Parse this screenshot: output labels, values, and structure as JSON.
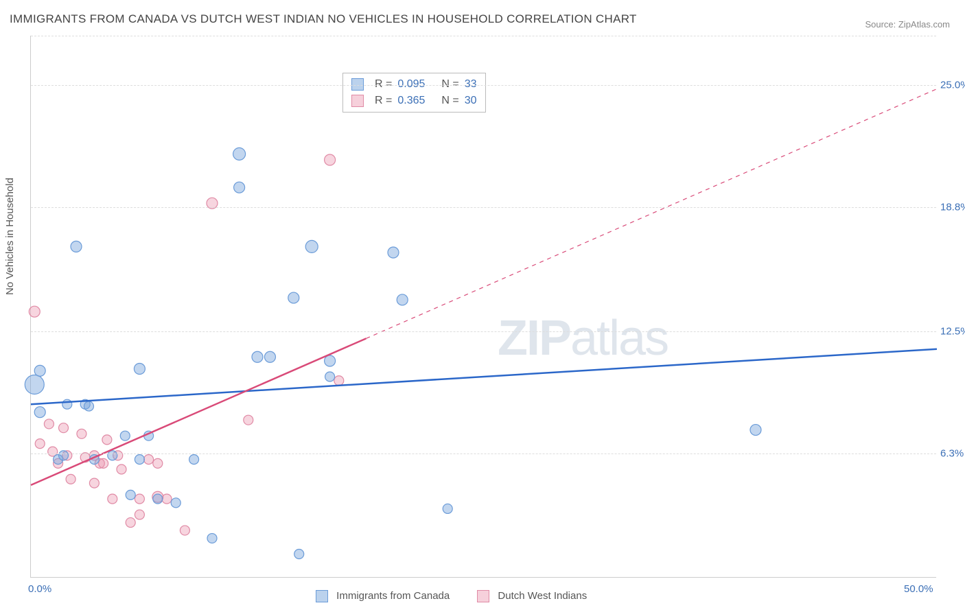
{
  "title": "IMMIGRANTS FROM CANADA VS DUTCH WEST INDIAN NO VEHICLES IN HOUSEHOLD CORRELATION CHART",
  "source": "Source: ZipAtlas.com",
  "y_axis_title": "No Vehicles in Household",
  "watermark": {
    "bold": "ZIP",
    "light": "atlas"
  },
  "chart": {
    "type": "scatter-with-regression",
    "x_min": 0.0,
    "x_max": 50.0,
    "y_min": 0.0,
    "y_max": 27.5,
    "background_color": "#ffffff",
    "grid_color": "#dddddd",
    "axis_color": "#cccccc",
    "tick_color": "#3b6fb6",
    "y_ticks": [
      {
        "value": 6.3,
        "label": "6.3%"
      },
      {
        "value": 12.5,
        "label": "12.5%"
      },
      {
        "value": 18.8,
        "label": "18.8%"
      },
      {
        "value": 25.0,
        "label": "25.0%"
      }
    ],
    "x_ticks": [
      {
        "value": 0.0,
        "label": "0.0%"
      },
      {
        "value": 50.0,
        "label": "50.0%"
      }
    ],
    "series": [
      {
        "name": "Immigrants from Canada",
        "fill_color": "rgba(120,165,220,0.45)",
        "stroke_color": "#6a9bd8",
        "line_color": "#2b67c9",
        "line_width": 2.5,
        "R": "0.095",
        "N": "33",
        "regression": {
          "x1": 0,
          "y1": 8.8,
          "x2": 50,
          "y2": 11.6
        },
        "points": [
          {
            "x": 0.2,
            "y": 9.8,
            "r": 14
          },
          {
            "x": 0.5,
            "y": 10.5,
            "r": 8
          },
          {
            "x": 0.5,
            "y": 8.4,
            "r": 8
          },
          {
            "x": 1.5,
            "y": 6.0,
            "r": 7
          },
          {
            "x": 1.8,
            "y": 6.2,
            "r": 7
          },
          {
            "x": 2.0,
            "y": 8.8,
            "r": 7
          },
          {
            "x": 2.5,
            "y": 16.8,
            "r": 8
          },
          {
            "x": 3.0,
            "y": 8.8,
            "r": 7
          },
          {
            "x": 3.2,
            "y": 8.7,
            "r": 7
          },
          {
            "x": 3.5,
            "y": 6.0,
            "r": 7
          },
          {
            "x": 4.5,
            "y": 6.2,
            "r": 7
          },
          {
            "x": 5.2,
            "y": 7.2,
            "r": 7
          },
          {
            "x": 5.5,
            "y": 4.2,
            "r": 7
          },
          {
            "x": 6.0,
            "y": 10.6,
            "r": 8
          },
          {
            "x": 6.0,
            "y": 6.0,
            "r": 7
          },
          {
            "x": 6.5,
            "y": 7.2,
            "r": 7
          },
          {
            "x": 7.0,
            "y": 4.0,
            "r": 7
          },
          {
            "x": 8.0,
            "y": 3.8,
            "r": 7
          },
          {
            "x": 9.0,
            "y": 6.0,
            "r": 7
          },
          {
            "x": 10.0,
            "y": 2.0,
            "r": 7
          },
          {
            "x": 11.5,
            "y": 21.5,
            "r": 9
          },
          {
            "x": 11.5,
            "y": 19.8,
            "r": 8
          },
          {
            "x": 12.5,
            "y": 11.2,
            "r": 8
          },
          {
            "x": 13.2,
            "y": 11.2,
            "r": 8
          },
          {
            "x": 14.5,
            "y": 14.2,
            "r": 8
          },
          {
            "x": 14.8,
            "y": 1.2,
            "r": 7
          },
          {
            "x": 15.5,
            "y": 16.8,
            "r": 9
          },
          {
            "x": 16.5,
            "y": 10.2,
            "r": 7
          },
          {
            "x": 16.5,
            "y": 11.0,
            "r": 8
          },
          {
            "x": 20.0,
            "y": 16.5,
            "r": 8
          },
          {
            "x": 20.5,
            "y": 14.1,
            "r": 8
          },
          {
            "x": 23.0,
            "y": 3.5,
            "r": 7
          },
          {
            "x": 40.0,
            "y": 7.5,
            "r": 8
          }
        ]
      },
      {
        "name": "Dutch West Indians",
        "fill_color": "rgba(235,150,175,0.40)",
        "stroke_color": "#e08aa5",
        "line_color": "#d94a78",
        "line_width": 2.5,
        "line_dash_after_x": 18.5,
        "R": "0.365",
        "N": "30",
        "regression": {
          "x1": 0,
          "y1": 4.7,
          "x2": 50,
          "y2": 24.8
        },
        "points": [
          {
            "x": 0.2,
            "y": 13.5,
            "r": 8
          },
          {
            "x": 0.5,
            "y": 6.8,
            "r": 7
          },
          {
            "x": 1.0,
            "y": 7.8,
            "r": 7
          },
          {
            "x": 1.2,
            "y": 6.4,
            "r": 7
          },
          {
            "x": 1.5,
            "y": 5.8,
            "r": 7
          },
          {
            "x": 1.8,
            "y": 7.6,
            "r": 7
          },
          {
            "x": 2.0,
            "y": 6.2,
            "r": 7
          },
          {
            "x": 2.2,
            "y": 5.0,
            "r": 7
          },
          {
            "x": 2.8,
            "y": 7.3,
            "r": 7
          },
          {
            "x": 3.0,
            "y": 6.1,
            "r": 7
          },
          {
            "x": 3.5,
            "y": 6.2,
            "r": 7
          },
          {
            "x": 3.5,
            "y": 4.8,
            "r": 7
          },
          {
            "x": 3.8,
            "y": 5.8,
            "r": 7
          },
          {
            "x": 4.0,
            "y": 5.8,
            "r": 7
          },
          {
            "x": 4.2,
            "y": 7.0,
            "r": 7
          },
          {
            "x": 4.5,
            "y": 4.0,
            "r": 7
          },
          {
            "x": 4.8,
            "y": 6.2,
            "r": 7
          },
          {
            "x": 5.0,
            "y": 5.5,
            "r": 7
          },
          {
            "x": 5.5,
            "y": 2.8,
            "r": 7
          },
          {
            "x": 6.0,
            "y": 3.2,
            "r": 7
          },
          {
            "x": 6.0,
            "y": 4.0,
            "r": 7
          },
          {
            "x": 6.5,
            "y": 6.0,
            "r": 7
          },
          {
            "x": 7.0,
            "y": 5.8,
            "r": 7
          },
          {
            "x": 7.0,
            "y": 4.1,
            "r": 8
          },
          {
            "x": 7.5,
            "y": 4.0,
            "r": 7
          },
          {
            "x": 8.5,
            "y": 2.4,
            "r": 7
          },
          {
            "x": 10.0,
            "y": 19.0,
            "r": 8
          },
          {
            "x": 12.0,
            "y": 8.0,
            "r": 7
          },
          {
            "x": 16.5,
            "y": 21.2,
            "r": 8
          },
          {
            "x": 17.0,
            "y": 10.0,
            "r": 7
          }
        ]
      }
    ]
  },
  "bottom_legend": [
    {
      "label": "Immigrants from Canada",
      "fill": "rgba(120,165,220,0.5)",
      "stroke": "#6a9bd8"
    },
    {
      "label": "Dutch West Indians",
      "fill": "rgba(235,150,175,0.45)",
      "stroke": "#e08aa5"
    }
  ]
}
